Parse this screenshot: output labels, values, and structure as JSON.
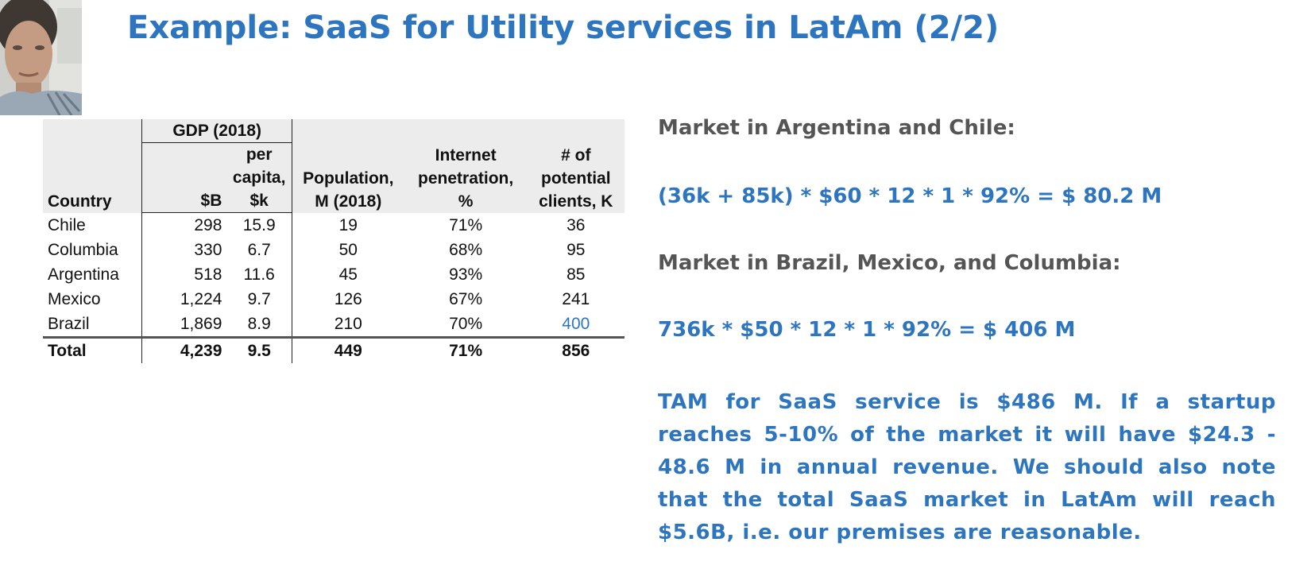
{
  "slide": {
    "title": "Example: SaaS for Utility services in LatAm (2/2)"
  },
  "webcam": {
    "icon": "presenter-video-thumbnail"
  },
  "table": {
    "group_header": "GDP (2018)",
    "headers": {
      "country": "Country",
      "gdp_b": "$B",
      "gdp_per_capita": "per capita, $k",
      "population": "Population, M (2018)",
      "internet": "Internet penetration, %",
      "clients": "# of potential clients, K"
    },
    "rows": [
      {
        "country": "Chile",
        "gdp_b": "298",
        "per_capita": "15.9",
        "population": "19",
        "internet": "71%",
        "clients": "36"
      },
      {
        "country": "Columbia",
        "gdp_b": "330",
        "per_capita": "6.7",
        "population": "50",
        "internet": "68%",
        "clients": "95"
      },
      {
        "country": "Argentina",
        "gdp_b": "518",
        "per_capita": "11.6",
        "population": "45",
        "internet": "93%",
        "clients": "85"
      },
      {
        "country": "Mexico",
        "gdp_b": "1,224",
        "per_capita": "9.7",
        "population": "126",
        "internet": "67%",
        "clients": "241"
      },
      {
        "country": "Brazil",
        "gdp_b": "1,869",
        "per_capita": "8.9",
        "population": "210",
        "internet": "70%",
        "clients": "400"
      }
    ],
    "total": {
      "country": "Total",
      "gdp_b": "4,239",
      "per_capita": "9.5",
      "population": "449",
      "internet": "71%",
      "clients": "856"
    },
    "highlight_color": "#2e75c0"
  },
  "right": {
    "heading1": "Market in Argentina and Chile:",
    "formula1": "(36k + 85k) * $60 * 12 * 1 * 92% = $ 80.2 M",
    "heading2": "Market in Brazil, Mexico, and Columbia:",
    "formula2": "736k * $50 * 12 * 1 * 92% = $ 406 M",
    "conclusion": "TAM for SaaS service is $486 M. If a startup reaches 5-10% of the market it will have $24.3 - 48.6 M in annual revenue. We should also note that the total SaaS market in LatAm will reach $5.6B, i.e. our premises are reasonable."
  },
  "colors": {
    "accent_blue": "#2e75c0",
    "heading_gray": "#555555",
    "header_bg": "#ececec"
  }
}
